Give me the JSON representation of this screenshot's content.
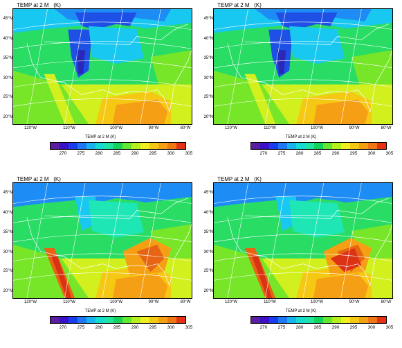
{
  "panels": [
    {
      "title": "TEMP at 2 M   (K)",
      "lat_labels": [
        "45°N",
        "40°N",
        "35°N",
        "30°N",
        "25°N",
        "20°N"
      ],
      "lon_labels": [
        "120°W",
        "110°W",
        "100°W",
        "90°W",
        "80°W"
      ],
      "colorbar_title": "TEMP at 2 M  (K)",
      "colorbar_ticks": [
        "270",
        "275",
        "280",
        "285",
        "290",
        "295",
        "300",
        "305"
      ]
    },
    {
      "title": "TEMP at 2 M   (K)",
      "lat_labels": [
        "45°N",
        "40°N",
        "35°N",
        "30°N",
        "25°N",
        "20°N"
      ],
      "lon_labels": [
        "120°W",
        "110°W",
        "100°W",
        "90°W",
        "80°W"
      ],
      "colorbar_title": "TEMP at 2 M  (K)",
      "colorbar_ticks": [
        "270",
        "275",
        "280",
        "285",
        "290",
        "295",
        "300",
        "305"
      ]
    },
    {
      "title": "TEMP at 2 M   (K)",
      "lat_labels": [
        "45°N",
        "40°N",
        "35°N",
        "30°N",
        "25°N",
        "20°N"
      ],
      "lon_labels": [
        "120°W",
        "110°W",
        "100°W",
        "90°W",
        "80°W"
      ],
      "colorbar_title": "TEMP at 2 M  (K)",
      "colorbar_ticks": [
        "270",
        "275",
        "280",
        "285",
        "290",
        "295",
        "300",
        "305"
      ]
    },
    {
      "title": "TEMP at 2 M   (K)",
      "lat_labels": [
        "45°N",
        "40°N",
        "35°N",
        "30°N",
        "25°N",
        "20°N"
      ],
      "lon_labels": [
        "120°W",
        "110°W",
        "100°W",
        "90°W",
        "80°W"
      ],
      "colorbar_title": "TEMP at 2 M  (K)",
      "colorbar_ticks": [
        "270",
        "275",
        "280",
        "285",
        "290",
        "295",
        "300",
        "305"
      ]
    }
  ],
  "colorbar_colors": [
    "#5a1ea0",
    "#3a10c8",
    "#1a3cf0",
    "#1e78f5",
    "#19b4f0",
    "#14dcd2",
    "#1ee6a0",
    "#14d25a",
    "#64e632",
    "#b4f01e",
    "#f0f01e",
    "#f5c814",
    "#f5a014",
    "#f07814",
    "#e63214"
  ],
  "map_colors": {
    "cold_core": "#2a28b8",
    "very_cold": "#1e50e6",
    "cold": "#1e8cf5",
    "cool": "#19c8f0",
    "mild": "#1ee6b4",
    "temperate": "#28dc64",
    "warm": "#78e628",
    "warmer": "#d2f01e",
    "hot": "#f5c814",
    "hotter": "#f5a014",
    "very_hot": "#e66414",
    "extreme": "#dc3214",
    "grid_line": "#ffffff"
  }
}
